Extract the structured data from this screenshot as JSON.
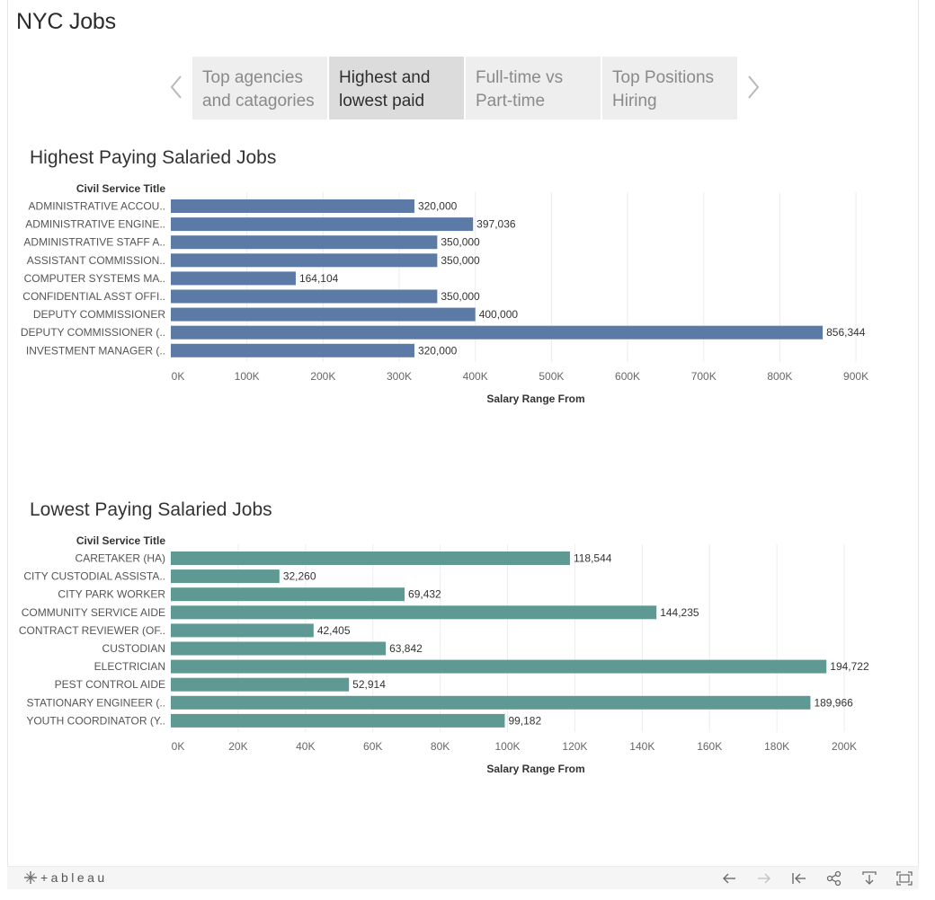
{
  "page": {
    "title": "NYC Jobs"
  },
  "tabs": [
    {
      "line1": "Top agencies",
      "line2": "and catagories",
      "active": false
    },
    {
      "line1": "Highest and",
      "line2": "lowest paid",
      "active": true
    },
    {
      "line1": "Full-time vs",
      "line2": "Part-time",
      "active": false
    },
    {
      "line1": "Top Positions",
      "line2": "Hiring",
      "active": false
    }
  ],
  "chart_data": [
    {
      "type": "bar",
      "orientation": "horizontal",
      "title": "Highest Paying Salaried Jobs",
      "category_header": "Civil Service Title",
      "xlabel": "Salary Range From",
      "categories": [
        "ADMINISTRATIVE ACCOU..",
        "ADMINISTRATIVE ENGINE..",
        "ADMINISTRATIVE STAFF A..",
        "ASSISTANT COMMISSION..",
        "COMPUTER SYSTEMS MA..",
        "CONFIDENTIAL ASST OFFI..",
        "DEPUTY COMMISSIONER",
        "DEPUTY COMMISSIONER (..",
        "INVESTMENT MANAGER (.."
      ],
      "values": [
        320000,
        397036,
        350000,
        350000,
        164104,
        350000,
        400000,
        856344,
        320000
      ],
      "value_labels": [
        "320,000",
        "397,036",
        "350,000",
        "350,000",
        "164,104",
        "350,000",
        "400,000",
        "856,344",
        "320,000"
      ],
      "xlim": [
        0,
        920000
      ],
      "ticks": [
        0,
        100000,
        200000,
        300000,
        400000,
        500000,
        600000,
        700000,
        800000,
        900000
      ],
      "tick_labels": [
        "0K",
        "100K",
        "200K",
        "300K",
        "400K",
        "500K",
        "600K",
        "700K",
        "800K",
        "900K"
      ],
      "color": "#5b7ba6",
      "grid": true
    },
    {
      "type": "bar",
      "orientation": "horizontal",
      "title": "Lowest Paying Salaried Jobs",
      "category_header": "Civil Service Title",
      "xlabel": "Salary Range From",
      "categories": [
        "CARETAKER (HA)",
        "CITY CUSTODIAL ASSISTA..",
        "CITY PARK WORKER",
        "COMMUNITY SERVICE AIDE",
        "CONTRACT REVIEWER (OF..",
        "CUSTODIAN",
        "ELECTRICIAN",
        "PEST CONTROL AIDE",
        "STATIONARY ENGINEER (..",
        "YOUTH COORDINATOR (Y.."
      ],
      "values": [
        118544,
        32260,
        69432,
        144235,
        42405,
        63842,
        194722,
        52914,
        189966,
        99182
      ],
      "value_labels": [
        "118,544",
        "32,260",
        "69,432",
        "144,235",
        "42,405",
        "63,842",
        "194,722",
        "52,914",
        "189,966",
        "99,182"
      ],
      "xlim": [
        0,
        208000
      ],
      "ticks": [
        0,
        20000,
        40000,
        60000,
        80000,
        100000,
        120000,
        140000,
        160000,
        180000,
        200000
      ],
      "tick_labels": [
        "0K",
        "20K",
        "40K",
        "60K",
        "80K",
        "100K",
        "120K",
        "140K",
        "160K",
        "180K",
        "200K"
      ],
      "color": "#5e9a93",
      "grid": true
    }
  ],
  "footer": {
    "logo_text": "+ableau",
    "icons": [
      "undo-icon",
      "redo-icon",
      "revert-icon",
      "share-icon",
      "download-icon",
      "fullscreen-icon"
    ]
  }
}
